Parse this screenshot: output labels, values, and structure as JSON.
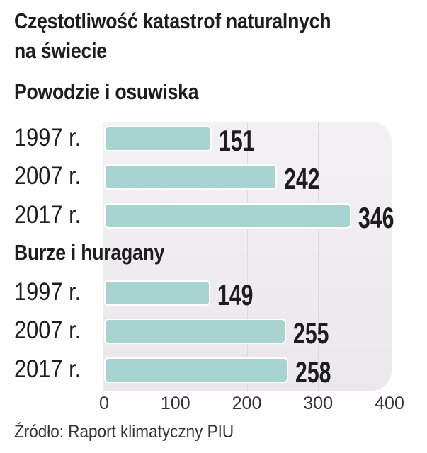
{
  "chart_data": {
    "type": "bar",
    "orientation": "horizontal",
    "title": "Częstotliwość katastrof naturalnych na świecie",
    "title_lines": [
      "Częstotliwość katastrof naturalnych",
      "na świecie"
    ],
    "groups": [
      {
        "name": "Powodzie i osuwiska",
        "categories": [
          "1997 r.",
          "2007 r.",
          "2017 r."
        ],
        "values": [
          151,
          242,
          346
        ]
      },
      {
        "name": "Burze i huragany",
        "categories": [
          "1997 r.",
          "2007 r.",
          "2017 r."
        ],
        "values": [
          149,
          255,
          258
        ]
      }
    ],
    "xlim": [
      0,
      400
    ],
    "xticks": [
      "0",
      "100",
      "200",
      "300",
      "400"
    ],
    "grid": true,
    "bar_color": "#a7d4d0",
    "source": "Źródło: Raport klimatyczny PIU"
  }
}
